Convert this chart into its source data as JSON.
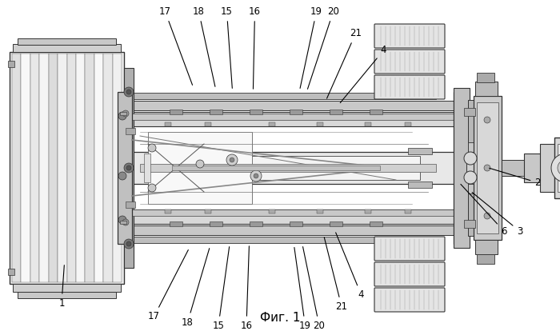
{
  "title": "Фиг. 1",
  "bg_color": "#ffffff",
  "fig_width": 7.0,
  "fig_height": 4.19,
  "dpi": 100,
  "annotations": [
    [
      "17",
      [
        0.295,
        0.965
      ],
      [
        0.345,
        0.74
      ]
    ],
    [
      "18",
      [
        0.355,
        0.965
      ],
      [
        0.385,
        0.735
      ]
    ],
    [
      "15",
      [
        0.405,
        0.965
      ],
      [
        0.415,
        0.73
      ]
    ],
    [
      "16",
      [
        0.455,
        0.965
      ],
      [
        0.452,
        0.728
      ]
    ],
    [
      "19",
      [
        0.565,
        0.965
      ],
      [
        0.535,
        0.73
      ]
    ],
    [
      "20",
      [
        0.595,
        0.965
      ],
      [
        0.548,
        0.728
      ]
    ],
    [
      "21",
      [
        0.635,
        0.9
      ],
      [
        0.582,
        0.7
      ]
    ],
    [
      "4",
      [
        0.685,
        0.85
      ],
      [
        0.605,
        0.688
      ]
    ],
    [
      "17",
      [
        0.275,
        0.055
      ],
      [
        0.338,
        0.26
      ]
    ],
    [
      "18",
      [
        0.335,
        0.038
      ],
      [
        0.375,
        0.265
      ]
    ],
    [
      "15",
      [
        0.39,
        0.028
      ],
      [
        0.41,
        0.27
      ]
    ],
    [
      "16",
      [
        0.44,
        0.028
      ],
      [
        0.445,
        0.272
      ]
    ],
    [
      "19",
      [
        0.545,
        0.028
      ],
      [
        0.525,
        0.268
      ]
    ],
    [
      "20",
      [
        0.57,
        0.028
      ],
      [
        0.54,
        0.27
      ]
    ],
    [
      "21",
      [
        0.61,
        0.085
      ],
      [
        0.578,
        0.298
      ]
    ],
    [
      "4",
      [
        0.645,
        0.12
      ],
      [
        0.598,
        0.312
      ]
    ],
    [
      "1",
      [
        0.11,
        0.095
      ],
      [
        0.115,
        0.215
      ]
    ],
    [
      "2",
      [
        0.96,
        0.455
      ],
      [
        0.87,
        0.5
      ]
    ],
    [
      "3",
      [
        0.928,
        0.31
      ],
      [
        0.84,
        0.43
      ]
    ],
    [
      "6",
      [
        0.9,
        0.31
      ],
      [
        0.82,
        0.455
      ]
    ]
  ]
}
